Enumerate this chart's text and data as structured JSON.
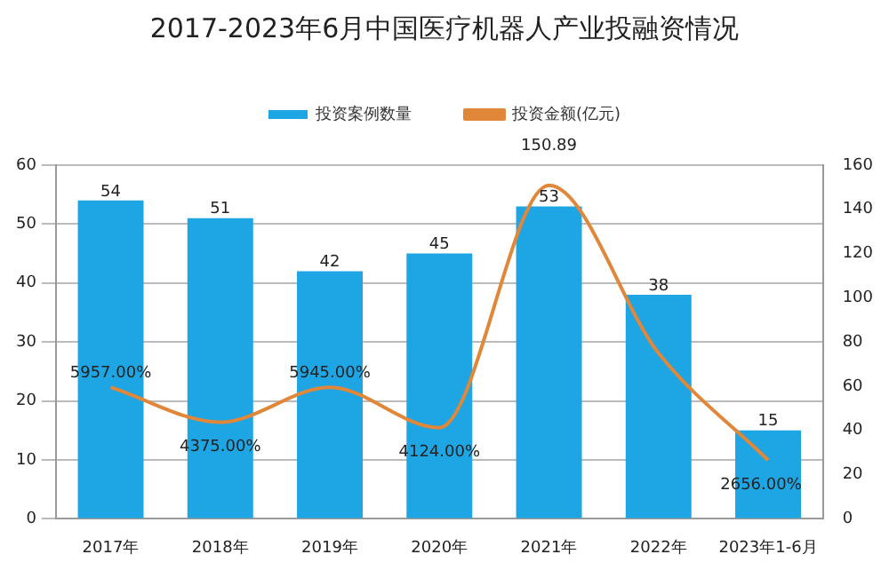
{
  "chart_data": {
    "type": "bar",
    "title": "2017-2023年6月中国医疗机器人产业投融资情况",
    "categories": [
      "2017年",
      "2018年",
      "2019年",
      "2020年",
      "2021年",
      "2022年",
      "2023年1-6月"
    ],
    "series": [
      {
        "name": "投资案例数量",
        "color": "#1ea5e3",
        "values": [
          54,
          51,
          42,
          45,
          53,
          38,
          15
        ],
        "value_labels": [
          "54",
          "51",
          "42",
          "45",
          "53",
          "38",
          "15"
        ]
      },
      {
        "name": "投资金额(亿元)",
        "type": "line",
        "axis": "y2",
        "color": "#e0873a",
        "values": [
          59.57,
          43.75,
          59.45,
          41.24,
          150.89,
          75,
          26.56
        ],
        "value_labels": [
          "5957.00%",
          "4375.00%",
          "5945.00%",
          "4124.00%",
          "150.89",
          null,
          "2656.00%"
        ]
      }
    ],
    "ylim": [
      0,
      60
    ],
    "yticks": [
      0,
      10,
      20,
      30,
      40,
      50,
      60
    ],
    "y2lim": [
      0,
      160
    ],
    "y2ticks": [
      0,
      20,
      40,
      60,
      80,
      100,
      120,
      140,
      160
    ],
    "grid": "y",
    "legend": "top",
    "marker": "none"
  }
}
